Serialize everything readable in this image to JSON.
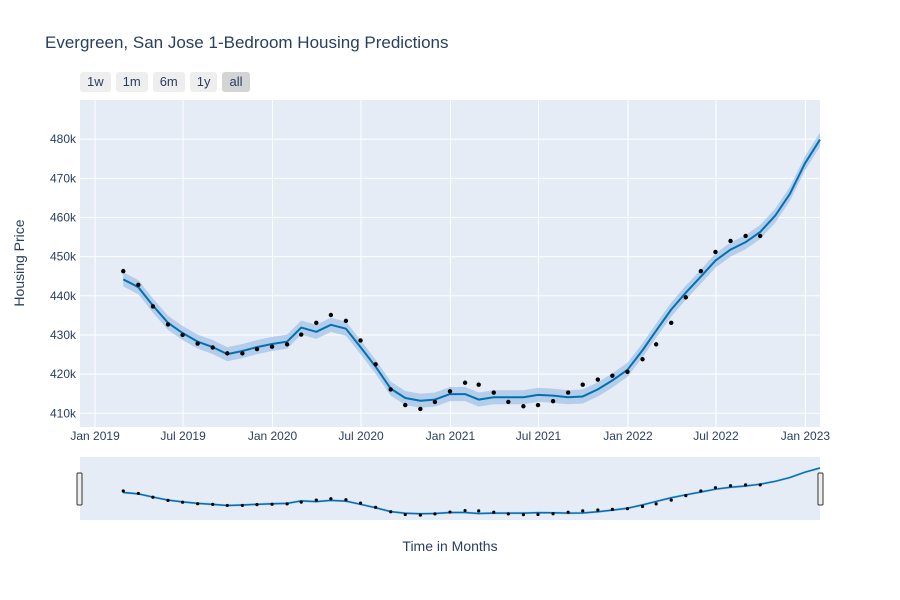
{
  "title": "Evergreen, San Jose 1-Bedroom Housing Predictions",
  "range_buttons": [
    {
      "label": "1w",
      "active": false
    },
    {
      "label": "1m",
      "active": false
    },
    {
      "label": "6m",
      "active": false
    },
    {
      "label": "1y",
      "active": false
    },
    {
      "label": "all",
      "active": true
    }
  ],
  "colors": {
    "plot_bg": "#e5ecf6",
    "grid": "#ffffff",
    "line": "#0072b2",
    "band": "#aac8e8",
    "points": "#000000",
    "text": "#2a3f5f"
  },
  "chart_data": {
    "type": "line",
    "title": "Evergreen, San Jose 1-Bedroom Housing Predictions",
    "xlabel": "Time in Months",
    "ylabel": "Housing Price",
    "x_type": "date",
    "xlim": [
      "2018-12-01",
      "2023-01-31"
    ],
    "ylim": [
      406500,
      490000
    ],
    "x_ticks": [
      {
        "date": "2019-01-01",
        "label": "Jan 2019"
      },
      {
        "date": "2019-07-01",
        "label": "Jul 2019"
      },
      {
        "date": "2020-01-01",
        "label": "Jan 2020"
      },
      {
        "date": "2020-07-01",
        "label": "Jul 2020"
      },
      {
        "date": "2021-01-01",
        "label": "Jan 2021"
      },
      {
        "date": "2021-07-01",
        "label": "Jul 2021"
      },
      {
        "date": "2022-01-01",
        "label": "Jan 2022"
      },
      {
        "date": "2022-07-01",
        "label": "Jul 2022"
      },
      {
        "date": "2023-01-01",
        "label": "Jan 2023"
      }
    ],
    "y_ticks": [
      {
        "value": 410000,
        "label": "410k"
      },
      {
        "value": 420000,
        "label": "420k"
      },
      {
        "value": 430000,
        "label": "430k"
      },
      {
        "value": 440000,
        "label": "440k"
      },
      {
        "value": 450000,
        "label": "450k"
      },
      {
        "value": 460000,
        "label": "460k"
      },
      {
        "value": 470000,
        "label": "470k"
      },
      {
        "value": 480000,
        "label": "480k"
      }
    ],
    "grid": true,
    "has_range_slider": true,
    "observed": {
      "x": [
        "2019-02-28",
        "2019-03-31",
        "2019-04-30",
        "2019-05-31",
        "2019-06-30",
        "2019-07-31",
        "2019-08-31",
        "2019-09-30",
        "2019-10-31",
        "2019-11-30",
        "2019-12-31",
        "2020-01-31",
        "2020-02-29",
        "2020-03-31",
        "2020-04-30",
        "2020-05-31",
        "2020-06-30",
        "2020-07-31",
        "2020-08-31",
        "2020-09-30",
        "2020-10-31",
        "2020-11-30",
        "2020-12-31",
        "2021-01-31",
        "2021-02-28",
        "2021-03-31",
        "2021-04-30",
        "2021-05-31",
        "2021-06-30",
        "2021-07-31",
        "2021-08-31",
        "2021-09-30",
        "2021-10-31",
        "2021-11-30",
        "2021-12-31",
        "2022-01-31",
        "2022-02-28",
        "2022-03-31",
        "2022-04-30",
        "2022-05-31",
        "2022-06-30",
        "2022-07-31",
        "2022-08-31",
        "2022-09-30"
      ],
      "y": [
        446300,
        442800,
        437300,
        432700,
        430000,
        427800,
        426800,
        425300,
        425300,
        426400,
        427000,
        427600,
        430100,
        433100,
        435100,
        433600,
        428600,
        422500,
        416100,
        412100,
        411100,
        412900,
        415600,
        417800,
        417300,
        415300,
        412900,
        411800,
        412100,
        413100,
        415300,
        417300,
        418600,
        419600,
        420600,
        423800,
        427600,
        433100,
        439600,
        446300,
        451200,
        454000,
        455300,
        455300
      ]
    },
    "forecast": {
      "x": [
        "2019-02-28",
        "2019-03-31",
        "2019-04-30",
        "2019-05-31",
        "2019-06-30",
        "2019-07-31",
        "2019-08-31",
        "2019-09-30",
        "2019-10-31",
        "2019-11-30",
        "2019-12-31",
        "2020-01-31",
        "2020-02-29",
        "2020-03-31",
        "2020-04-30",
        "2020-05-31",
        "2020-06-30",
        "2020-07-31",
        "2020-08-31",
        "2020-09-30",
        "2020-10-31",
        "2020-11-30",
        "2020-12-31",
        "2021-01-31",
        "2021-02-28",
        "2021-03-31",
        "2021-04-30",
        "2021-05-31",
        "2021-06-30",
        "2021-07-31",
        "2021-08-31",
        "2021-09-30",
        "2021-10-31",
        "2021-11-30",
        "2021-12-31",
        "2022-01-31",
        "2022-02-28",
        "2022-03-31",
        "2022-04-30",
        "2022-05-31",
        "2022-06-30",
        "2022-07-31",
        "2022-08-31",
        "2022-09-30",
        "2022-10-31",
        "2022-11-30",
        "2022-12-31",
        "2023-01-31"
      ],
      "yhat": [
        444200,
        442200,
        437500,
        433100,
        430500,
        428300,
        426900,
        425100,
        425900,
        426900,
        427700,
        428300,
        431900,
        430800,
        432600,
        431600,
        426900,
        421900,
        416300,
        413900,
        413200,
        413500,
        414900,
        414900,
        413500,
        414100,
        414100,
        414100,
        414700,
        414500,
        414100,
        414300,
        416100,
        418400,
        421100,
        426100,
        431100,
        436500,
        440800,
        444900,
        449000,
        451800,
        453700,
        456300,
        460500,
        466000,
        473800,
        479900
      ]
    },
    "band_upper_offset": 1800,
    "band_lower_offset": 1800
  }
}
